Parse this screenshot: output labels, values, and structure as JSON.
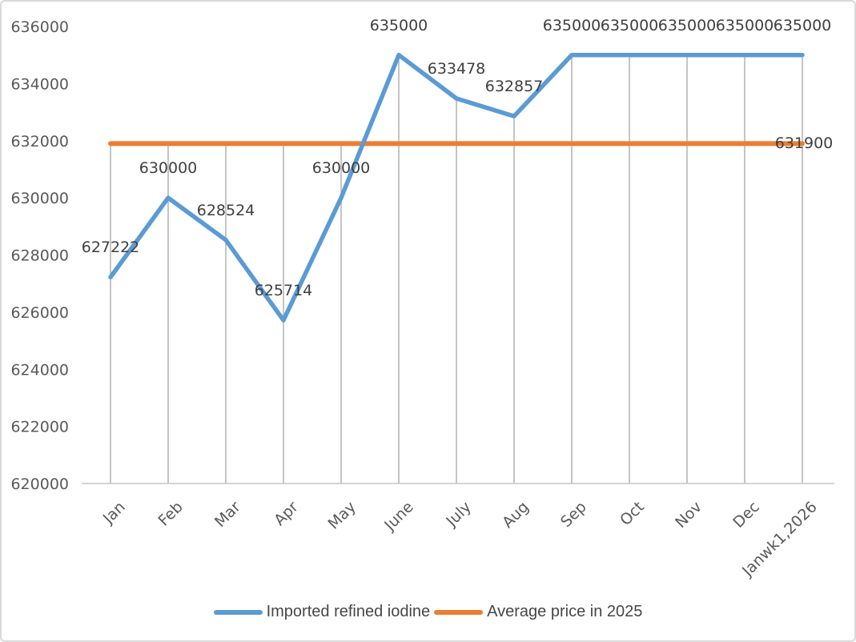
{
  "chart_data": {
    "type": "line",
    "title": "",
    "xlabel": "",
    "ylabel": "",
    "categories": [
      "Jan",
      "Feb",
      "Mar",
      "Apr",
      "May",
      "June",
      "July",
      "Aug",
      "Sep",
      "Oct",
      "Nov",
      "Dec",
      "Janwk1,2026"
    ],
    "series": [
      {
        "name": "Imported refined iodine",
        "type": "line",
        "color": "#5B9BD5",
        "values": [
          627222,
          630000,
          628524,
          625714,
          630000,
          635000,
          633478,
          632857,
          635000,
          635000,
          635000,
          635000,
          635000
        ],
        "data_labels": [
          "627222",
          "630000",
          "628524",
          "625714",
          "630000",
          "635000",
          "633478",
          "632857",
          "635000",
          "635000",
          "635000",
          "635000",
          "635000"
        ],
        "data_labels_position": "above"
      },
      {
        "name": "Average price in 2025",
        "type": "constant-line",
        "color": "#ED7D31",
        "value": 631900,
        "data_label": "631900",
        "data_label_position": "right-end-on-line"
      }
    ],
    "ylim": [
      620000,
      636000
    ],
    "ytick_step": 2000,
    "ytick_labels": [
      "620000",
      "622000",
      "624000",
      "626000",
      "628000",
      "630000",
      "632000",
      "634000",
      "636000"
    ],
    "grid": "vertical-drop-lines-per-category",
    "horizontal_gridlines": false,
    "x_tick_label_rotation_deg": -45,
    "legend_position": "bottom"
  },
  "legend": {
    "series1_label": "Imported refined iodine",
    "series2_label": "Average price in 2025"
  },
  "colors": {
    "series1_blue": "#5B9BD5",
    "series2_orange": "#ED7D31",
    "gridline": "#A6A6A6",
    "axis_line": "#C6C6C6",
    "axis_text": "#595959",
    "data_label_text": "#404040",
    "frame_border": "#D9D9D9"
  }
}
